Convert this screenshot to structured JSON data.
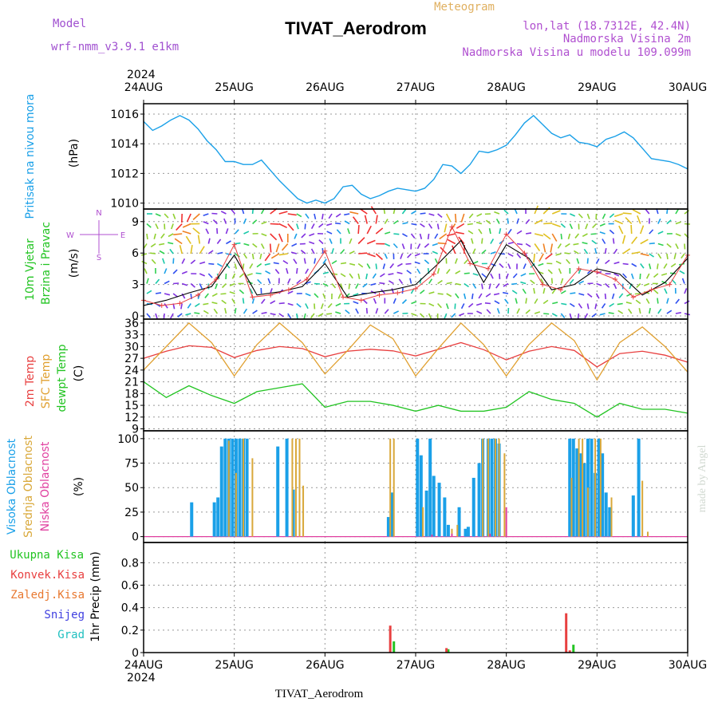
{
  "header": {
    "model_label": "Model",
    "model_name": "wrf-nmm_v3.9.1  e1km",
    "chart_type_label": "Meteogram",
    "station_title": "TIVAT_Aerodrom",
    "location_line": "lon,lat (18.7312E, 42.4N)",
    "elevation_line": "Nadmorska Visina 2m",
    "model_elevation_line": "Nadmorska Visina u modelu 109.099m",
    "year_top": "2024",
    "year_bottom": "2024",
    "footer_title": "TIVAT_Aerodrom",
    "credit": "made by Angel"
  },
  "colors": {
    "pressure": "#1aa0e8",
    "temp2m": "#e84040",
    "sfc_temp": "#e0a030",
    "dewpt": "#22c422",
    "high_cloud": "#1aa0e8",
    "mid_cloud": "#d9a83a",
    "low_cloud": "#e040a0",
    "total_precip": "#22c422",
    "convective_precip": "#e84040",
    "frozen_precip": "#e87830",
    "snow": "#4040e0",
    "hail": "#20c0c0"
  },
  "chart_data": [
    {
      "type": "line",
      "panel": "pressure",
      "ylabel_parts": [
        "Pritisak na nivou mora",
        "(hPa)"
      ],
      "x_ticks": [
        "24AUG",
        "25AUG",
        "26AUG",
        "27AUG",
        "28AUG",
        "29AUG",
        "30AUG"
      ],
      "yticks": [
        1010,
        1012,
        1014,
        1016
      ],
      "ylim": [
        1009.6,
        1016.7
      ],
      "series": [
        {
          "x": [
            0,
            0.1,
            0.2,
            0.3,
            0.4,
            0.5,
            0.6,
            0.7,
            0.8,
            0.9,
            1.0,
            1.1,
            1.2,
            1.3,
            1.4,
            1.5,
            1.6,
            1.7,
            1.8,
            1.9,
            2.0,
            2.1,
            2.2,
            2.3,
            2.4,
            2.5,
            2.6,
            2.7,
            2.8,
            2.9,
            3.0,
            3.1,
            3.2,
            3.3,
            3.4,
            3.5,
            3.6,
            3.7,
            3.8,
            3.9,
            4.0,
            4.1,
            4.2,
            4.3,
            4.4,
            4.5,
            4.6,
            4.7,
            4.8,
            4.9,
            5.0,
            5.1,
            5.2,
            5.3,
            5.4,
            5.5,
            5.6,
            5.7,
            5.8,
            5.9,
            6.0
          ],
          "y": [
            1015.5,
            1014.9,
            1015.2,
            1015.6,
            1015.9,
            1015.6,
            1015.0,
            1014.2,
            1013.6,
            1012.8,
            1012.8,
            1012.6,
            1012.6,
            1012.9,
            1012.2,
            1011.5,
            1010.9,
            1010.3,
            1010.0,
            1010.2,
            1010.0,
            1010.3,
            1011.1,
            1011.2,
            1010.6,
            1010.3,
            1010.5,
            1010.8,
            1011.0,
            1010.9,
            1010.8,
            1011.0,
            1011.6,
            1012.6,
            1012.5,
            1012.0,
            1012.6,
            1013.5,
            1013.4,
            1013.6,
            1013.9,
            1014.6,
            1015.4,
            1015.9,
            1015.3,
            1014.7,
            1014.4,
            1014.6,
            1014.1,
            1014.0,
            1013.8,
            1014.3,
            1014.5,
            1014.8,
            1014.4,
            1013.7,
            1013.0,
            1012.9,
            1012.8,
            1012.6,
            1012.3
          ]
        }
      ]
    },
    {
      "type": "line",
      "panel": "wind",
      "ylabel_parts": [
        "10m Vjetar",
        "Brzina i Pravac",
        "(m/s)"
      ],
      "compass_labels": [
        "N",
        "W",
        "E",
        "S"
      ],
      "yticks": [
        0,
        3,
        6,
        9
      ],
      "ylim": [
        -0.3,
        10.2
      ],
      "note": "colored arrows show wind direction; black line = wind speed; red crosses = gusts",
      "series": [
        {
          "name": "speed",
          "x": [
            0,
            0.25,
            0.5,
            0.75,
            1.0,
            1.25,
            1.5,
            1.75,
            2.0,
            2.25,
            2.5,
            2.75,
            3.0,
            3.25,
            3.5,
            3.75,
            4.0,
            4.25,
            4.5,
            4.75,
            5.0,
            5.25,
            5.5,
            5.75,
            6.0
          ],
          "y": [
            1.0,
            1.5,
            2.2,
            2.8,
            5.8,
            2.0,
            2.3,
            2.8,
            5.0,
            1.8,
            2.2,
            2.5,
            3.0,
            5.0,
            7.2,
            3.2,
            6.8,
            5.5,
            2.5,
            3.0,
            4.5,
            4.0,
            2.0,
            3.2,
            5.5
          ]
        },
        {
          "name": "gust",
          "x": [
            0,
            0.2,
            0.4,
            0.6,
            0.8,
            1.0,
            1.2,
            1.4,
            1.6,
            1.8,
            2.0,
            2.2,
            2.4,
            2.6,
            2.8,
            3.0,
            3.2,
            3.4,
            3.6,
            3.8,
            4.0,
            4.2,
            4.4,
            4.6,
            4.8,
            5.0,
            5.2,
            5.4,
            5.6,
            5.8,
            6.0
          ],
          "y": [
            1.5,
            1.0,
            1.2,
            2.0,
            3.5,
            6.8,
            1.8,
            2.0,
            2.5,
            3.5,
            6.2,
            1.8,
            1.5,
            2.0,
            2.2,
            2.6,
            4.0,
            8.5,
            5.0,
            4.5,
            7.8,
            6.0,
            3.0,
            2.5,
            4.5,
            4.2,
            3.5,
            1.8,
            2.5,
            3.0,
            5.8
          ]
        }
      ]
    },
    {
      "type": "line",
      "panel": "temperature",
      "ylabel_parts": [
        "2m Temp",
        "SFC Temp",
        "dewpt Temp",
        "(C)"
      ],
      "yticks": [
        9,
        12,
        15,
        18,
        21,
        24,
        27,
        30,
        33,
        36
      ],
      "ylim": [
        8.5,
        37
      ],
      "series": [
        {
          "name": "2m Temp",
          "x": [
            0,
            0.25,
            0.5,
            0.75,
            1.0,
            1.25,
            1.5,
            1.75,
            2.0,
            2.25,
            2.5,
            2.75,
            3.0,
            3.25,
            3.5,
            3.75,
            4.0,
            4.25,
            4.5,
            4.75,
            5.0,
            5.25,
            5.5,
            5.75,
            6.0
          ],
          "y": [
            27.0,
            28.8,
            30.2,
            29.8,
            27.2,
            29.0,
            30.0,
            29.5,
            27.4,
            28.8,
            29.3,
            28.9,
            27.6,
            29.3,
            31.0,
            29.2,
            26.6,
            28.8,
            30.0,
            29.0,
            24.8,
            28.2,
            28.8,
            27.8,
            26.0
          ]
        },
        {
          "name": "SFC Temp",
          "x": [
            0,
            0.25,
            0.5,
            0.75,
            1.0,
            1.25,
            1.5,
            1.75,
            2.0,
            2.25,
            2.5,
            2.75,
            3.0,
            3.25,
            3.5,
            3.75,
            4.0,
            4.25,
            4.5,
            4.75,
            5.0,
            5.25,
            5.5,
            5.75,
            6.0
          ],
          "y": [
            24.0,
            30.0,
            36.0,
            31.0,
            22.5,
            30.5,
            36.0,
            31.0,
            23.0,
            29.0,
            35.5,
            32.0,
            22.5,
            29.5,
            36.0,
            30.5,
            22.5,
            30.5,
            36.0,
            31.5,
            21.5,
            31.0,
            35.0,
            30.0,
            23.5
          ]
        },
        {
          "name": "dewpt Temp",
          "x": [
            0,
            0.25,
            0.5,
            0.75,
            1.0,
            1.25,
            1.5,
            1.75,
            2.0,
            2.25,
            2.5,
            2.75,
            3.0,
            3.25,
            3.5,
            3.75,
            4.0,
            4.25,
            4.5,
            4.75,
            5.0,
            5.25,
            5.5,
            5.75,
            6.0
          ],
          "y": [
            21.0,
            17.0,
            20.0,
            17.5,
            15.5,
            18.5,
            19.5,
            20.5,
            14.5,
            16.0,
            16.0,
            15.0,
            13.5,
            15.0,
            13.5,
            13.5,
            14.5,
            18.5,
            16.5,
            15.5,
            12.0,
            15.5,
            14.0,
            14.0,
            13.0
          ]
        }
      ]
    },
    {
      "type": "bar",
      "panel": "cloud",
      "ylabel_parts": [
        "Visoka Oblacnost",
        "Srednja Oblacnost",
        "Niska Oblacnost",
        "(%)"
      ],
      "yticks": [
        0,
        25,
        50,
        75,
        100
      ],
      "ylim": [
        -6,
        108
      ],
      "series": [
        {
          "name": "Visoka Oblacnost",
          "x": [
            0.53,
            0.78,
            0.82,
            0.86,
            0.9,
            0.94,
            0.98,
            1.02,
            1.06,
            1.1,
            1.14,
            1.3,
            1.48,
            1.58,
            1.65,
            2.7,
            2.74,
            3.02,
            3.06,
            3.12,
            3.16,
            3.2,
            3.26,
            3.32,
            3.36,
            3.48,
            3.55,
            3.58,
            3.64,
            3.7,
            3.74,
            3.8,
            3.84,
            3.88,
            3.92,
            4.7,
            4.74,
            4.78,
            4.82,
            4.86,
            4.9,
            4.94,
            4.98,
            5.02,
            5.06,
            5.1,
            5.14,
            5.4,
            5.46
          ],
          "y": [
            35,
            35,
            40,
            92,
            100,
            100,
            100,
            100,
            100,
            100,
            100,
            0,
            92,
            100,
            48,
            20,
            45,
            100,
            83,
            47,
            100,
            62,
            55,
            40,
            12,
            30,
            8,
            10,
            60,
            75,
            100,
            100,
            100,
            100,
            95,
            100,
            100,
            90,
            85,
            75,
            100,
            100,
            65,
            100,
            85,
            45,
            30,
            42,
            100
          ]
        },
        {
          "name": "Srednja Oblacnost",
          "x": [
            0.94,
            1.02,
            1.1,
            1.2,
            1.46,
            1.64,
            1.68,
            1.72,
            1.76,
            2.72,
            2.76,
            3.02,
            3.08,
            3.32,
            3.4,
            3.46,
            3.56,
            3.74,
            3.8,
            3.88,
            3.92,
            3.98,
            4.72,
            4.8,
            4.84,
            4.9,
            4.98,
            5.04,
            5.16,
            5.5,
            5.56
          ],
          "y": [
            98,
            65,
            100,
            80,
            0,
            100,
            100,
            100,
            52,
            100,
            100,
            0,
            30,
            0,
            8,
            12,
            0,
            100,
            100,
            100,
            100,
            85,
            60,
            100,
            100,
            50,
            100,
            100,
            40,
            57,
            5
          ]
        },
        {
          "name": "Niska Oblacnost",
          "x": [
            3.18,
            3.4,
            3.82,
            4.0
          ],
          "y": [
            2,
            3,
            3,
            30
          ]
        }
      ]
    },
    {
      "type": "bar",
      "panel": "precipitation",
      "ylabel_parts": [
        "1hr Precip (mm)"
      ],
      "legend": [
        "Ukupna Kisa",
        "Konvek.Kisa",
        "Zaledj.Kisa",
        "Snijeg",
        "Grad"
      ],
      "yticks": [
        0,
        0.2,
        0.4,
        0.6,
        0.8
      ],
      "ylim": [
        0,
        0.98
      ],
      "series": [
        {
          "name": "Ukupna Kisa",
          "x": [
            2.76,
            3.36,
            4.74
          ],
          "y": [
            0.1,
            0.03,
            0.07
          ]
        },
        {
          "name": "Konvek.Kisa",
          "x": [
            2.72,
            3.34,
            4.66,
            4.7
          ],
          "y": [
            0.24,
            0.04,
            0.35,
            0.02
          ]
        }
      ]
    }
  ]
}
